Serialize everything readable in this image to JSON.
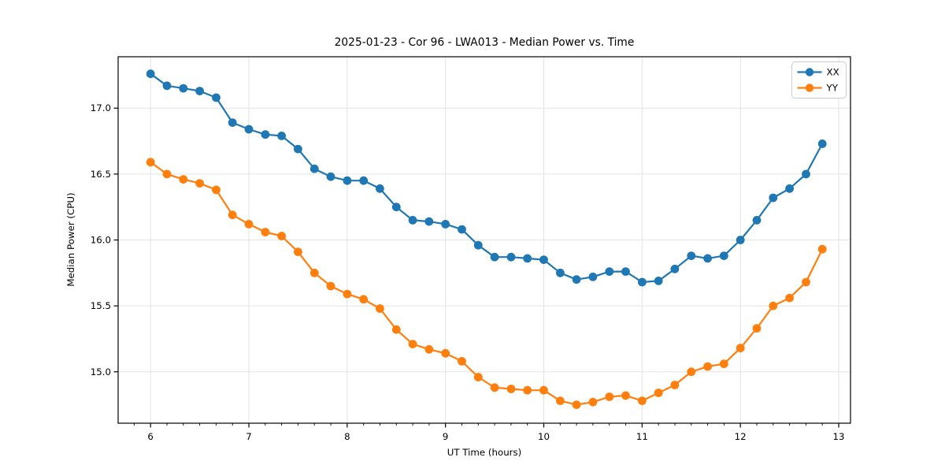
{
  "chart_data": {
    "type": "line",
    "title": "2025-01-23 - Cor 96 - LWA013 - Median Power vs. Time",
    "xlabel": "UT Time (hours)",
    "ylabel": "Median Power (CPU)",
    "xlim": [
      5.67,
      13.12
    ],
    "ylim": [
      14.61,
      17.39
    ],
    "xticks": [
      6,
      7,
      8,
      9,
      10,
      11,
      12,
      13
    ],
    "xtick_labels": [
      "6",
      "7",
      "8",
      "9",
      "10",
      "11",
      "12",
      "13"
    ],
    "yticks": [
      15.0,
      15.5,
      16.0,
      16.5,
      17.0
    ],
    "ytick_labels": [
      "15.0",
      "15.5",
      "16.0",
      "16.5",
      "17.0"
    ],
    "x_minor_step": 0.1666667,
    "grid": true,
    "grid_color": "#e3e3e3",
    "legend_position": "upper right",
    "background": "#ffffff",
    "x": [
      6.0,
      6.167,
      6.333,
      6.5,
      6.667,
      6.833,
      7.0,
      7.167,
      7.333,
      7.5,
      7.667,
      7.833,
      8.0,
      8.167,
      8.333,
      8.5,
      8.667,
      8.833,
      9.0,
      9.167,
      9.333,
      9.5,
      9.667,
      9.833,
      10.0,
      10.167,
      10.333,
      10.5,
      10.667,
      10.833,
      11.0,
      11.167,
      11.333,
      11.5,
      11.667,
      11.833,
      12.0,
      12.167,
      12.333,
      12.5,
      12.667,
      12.833
    ],
    "series": [
      {
        "name": "XX",
        "color": "#1f77b4",
        "values": [
          17.26,
          17.17,
          17.15,
          17.13,
          17.08,
          16.89,
          16.84,
          16.8,
          16.79,
          16.69,
          16.54,
          16.48,
          16.45,
          16.45,
          16.39,
          16.25,
          16.15,
          16.14,
          16.12,
          16.08,
          15.96,
          15.87,
          15.87,
          15.86,
          15.85,
          15.75,
          15.7,
          15.72,
          15.76,
          15.76,
          15.68,
          15.69,
          15.78,
          15.88,
          15.86,
          15.88,
          16.0,
          16.15,
          16.32,
          16.39,
          16.5,
          16.73
        ]
      },
      {
        "name": "YY",
        "color": "#ff7f0e",
        "values": [
          16.59,
          16.5,
          16.46,
          16.43,
          16.38,
          16.19,
          16.12,
          16.06,
          16.03,
          15.91,
          15.75,
          15.65,
          15.59,
          15.55,
          15.48,
          15.32,
          15.21,
          15.17,
          15.14,
          15.08,
          14.96,
          14.88,
          14.87,
          14.86,
          14.86,
          14.78,
          14.75,
          14.77,
          14.81,
          14.82,
          14.78,
          14.84,
          14.9,
          15.0,
          15.04,
          15.06,
          15.18,
          15.33,
          15.5,
          15.56,
          15.68,
          15.93
        ]
      }
    ]
  }
}
